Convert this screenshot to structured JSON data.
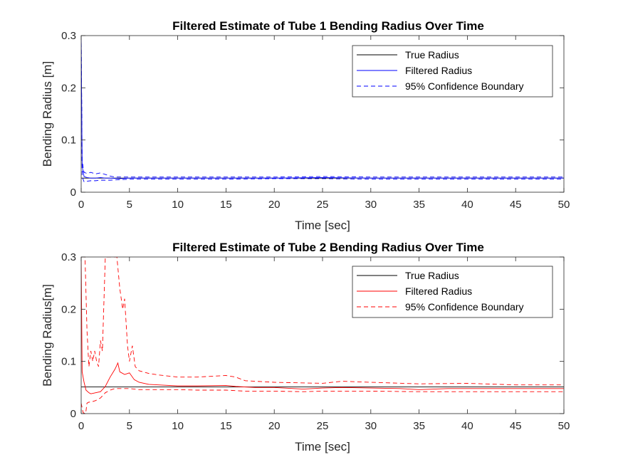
{
  "chart_data": [
    {
      "type": "line",
      "title": "Filtered Estimate of Tube 1 Bending Radius Over Time",
      "xlabel": "Time [sec]",
      "ylabel": "Bending Radius [m]",
      "xlim": [
        0,
        50
      ],
      "ylim": [
        0,
        0.3
      ],
      "xticks": [
        "0",
        "5",
        "10",
        "15",
        "20",
        "25",
        "30",
        "35",
        "40",
        "45",
        "50"
      ],
      "yticks": [
        "0",
        "0.1",
        "0.2",
        "0.3"
      ],
      "legend_position": "top-right",
      "series": [
        {
          "name": "True Radius",
          "color": "#000000",
          "dash": "solid",
          "x": [
            0,
            50
          ],
          "y": [
            0.027,
            0.027
          ]
        },
        {
          "name": "Filtered Radius",
          "color": "#0000ff",
          "dash": "solid",
          "x": [
            0,
            0.1,
            0.3,
            0.6,
            1,
            1.5,
            2,
            2.5,
            3,
            4,
            5,
            7,
            10,
            15,
            20,
            25,
            30,
            35,
            40,
            45,
            50
          ],
          "y": [
            0.3,
            0.05,
            0.03,
            0.028,
            0.027,
            0.027,
            0.028,
            0.027,
            0.027,
            0.026,
            0.027,
            0.027,
            0.027,
            0.027,
            0.027,
            0.028,
            0.027,
            0.027,
            0.027,
            0.027,
            0.027
          ]
        },
        {
          "name": "95% Confidence Boundary",
          "color": "#0000ff",
          "dash": "dashed",
          "x": [
            0,
            0.1,
            0.3,
            0.6,
            1,
            1.5,
            2,
            2.5,
            3,
            3.5,
            4,
            5,
            7,
            10,
            15,
            20,
            25,
            30,
            35,
            40,
            45,
            50
          ],
          "y": [
            0.3,
            0.06,
            0.038,
            0.036,
            0.038,
            0.035,
            0.037,
            0.034,
            0.031,
            0.029,
            0.029,
            0.029,
            0.029,
            0.029,
            0.029,
            0.029,
            0.03,
            0.029,
            0.029,
            0.029,
            0.029,
            0.029
          ]
        },
        {
          "name": "",
          "color": "#0000ff",
          "dash": "dashed",
          "x": [
            0,
            0.1,
            0.3,
            0.6,
            1,
            1.5,
            2,
            2.5,
            3,
            4,
            5,
            7,
            10,
            15,
            20,
            25,
            30,
            35,
            40,
            45,
            50
          ],
          "y": [
            0.3,
            0.03,
            0.02,
            0.021,
            0.022,
            0.022,
            0.023,
            0.023,
            0.023,
            0.024,
            0.025,
            0.025,
            0.025,
            0.025,
            0.026,
            0.026,
            0.025,
            0.025,
            0.025,
            0.025,
            0.025
          ]
        }
      ]
    },
    {
      "type": "line",
      "title": "Filtered Estimate of Tube 2 Bending Radius Over Time",
      "xlabel": "Time [sec]",
      "ylabel": "Bending Radius[m]",
      "xlim": [
        0,
        50
      ],
      "ylim": [
        0,
        0.3
      ],
      "xticks": [
        "0",
        "5",
        "10",
        "15",
        "20",
        "25",
        "30",
        "35",
        "40",
        "45",
        "50"
      ],
      "yticks": [
        "0",
        "0.1",
        "0.2",
        "0.3"
      ],
      "legend_position": "top-right",
      "series": [
        {
          "name": "True Radius",
          "color": "#000000",
          "dash": "solid",
          "x": [
            0,
            50
          ],
          "y": [
            0.051,
            0.051
          ]
        },
        {
          "name": "Filtered Radius",
          "color": "#ff0000",
          "dash": "solid",
          "x": [
            0,
            0.1,
            0.3,
            0.5,
            0.8,
            1,
            1.5,
            2,
            2.5,
            3,
            3.5,
            3.8,
            4,
            4.5,
            5,
            5.5,
            6,
            7,
            8,
            10,
            12,
            15,
            16,
            18,
            20,
            23,
            25,
            27,
            30,
            33,
            35,
            38,
            40,
            45,
            50
          ],
          "y": [
            0.3,
            0.08,
            0.06,
            0.045,
            0.04,
            0.038,
            0.04,
            0.042,
            0.052,
            0.07,
            0.085,
            0.097,
            0.08,
            0.075,
            0.078,
            0.065,
            0.06,
            0.056,
            0.055,
            0.053,
            0.053,
            0.054,
            0.052,
            0.05,
            0.05,
            0.047,
            0.049,
            0.05,
            0.049,
            0.048,
            0.046,
            0.048,
            0.048,
            0.048,
            0.048
          ]
        },
        {
          "name": "95% Confidence Boundary",
          "color": "#ff0000",
          "dash": "dashed",
          "x": [
            0,
            0.2,
            0.4,
            0.6,
            0.8,
            1,
            1.2,
            1.4,
            1.6,
            1.8,
            2,
            2.2,
            2.5,
            2.8,
            3,
            3.3,
            3.5,
            3.7,
            4,
            4.3,
            4.5,
            4.8,
            5,
            5.3,
            5.6,
            6,
            7,
            8,
            10,
            12,
            14,
            15,
            16,
            17,
            20,
            25,
            27,
            30,
            35,
            40,
            45,
            50
          ],
          "y": [
            0.3,
            0.3,
            0.3,
            0.16,
            0.09,
            0.12,
            0.1,
            0.12,
            0.1,
            0.09,
            0.14,
            0.12,
            0.3,
            0.3,
            0.3,
            0.3,
            0.3,
            0.3,
            0.24,
            0.2,
            0.22,
            0.13,
            0.1,
            0.13,
            0.09,
            0.082,
            0.077,
            0.074,
            0.07,
            0.07,
            0.072,
            0.073,
            0.07,
            0.063,
            0.06,
            0.058,
            0.062,
            0.06,
            0.057,
            0.058,
            0.055,
            0.055
          ]
        },
        {
          "name": "",
          "color": "#ff0000",
          "dash": "dashed",
          "x": [
            0,
            0.2,
            0.4,
            0.5,
            0.6,
            0.8,
            1,
            1.5,
            2,
            2.5,
            3,
            3.5,
            4,
            5,
            6,
            8,
            10,
            12,
            15,
            17,
            20,
            23,
            25,
            30,
            35,
            40,
            45,
            50
          ],
          "y": [
            0.02,
            0.002,
            0.0,
            0.005,
            0.02,
            0.022,
            0.022,
            0.025,
            0.03,
            0.04,
            0.045,
            0.048,
            0.048,
            0.048,
            0.046,
            0.046,
            0.046,
            0.045,
            0.045,
            0.043,
            0.043,
            0.042,
            0.043,
            0.043,
            0.042,
            0.042,
            0.042,
            0.042
          ]
        }
      ]
    }
  ]
}
